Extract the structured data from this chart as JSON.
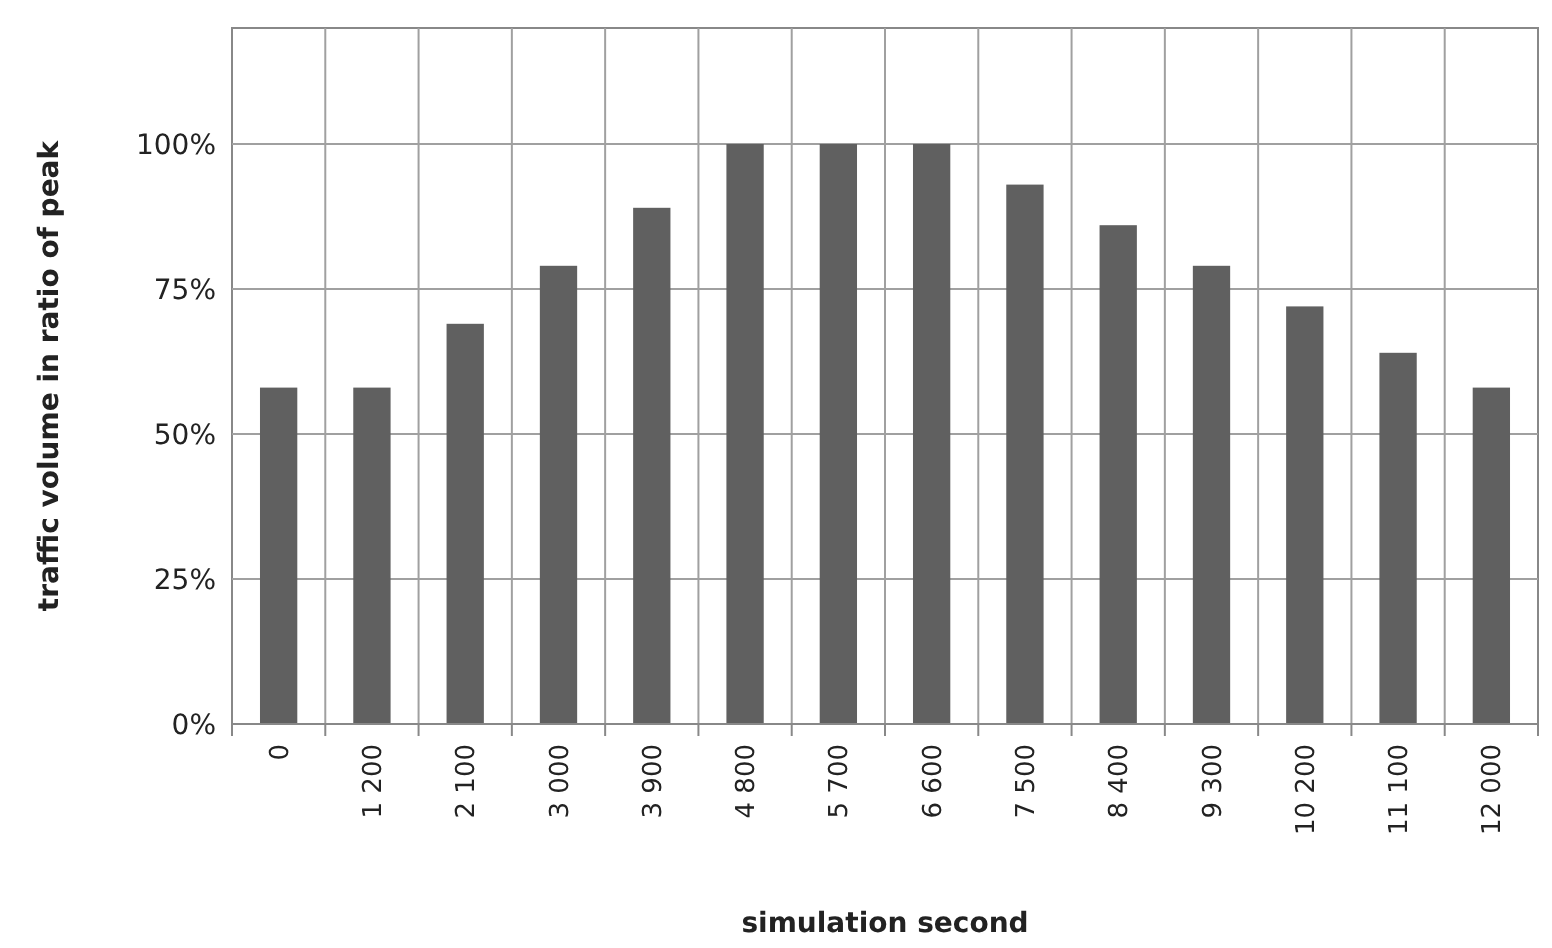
{
  "chart_data": {
    "type": "bar",
    "xlabel": "simulation second",
    "ylabel": "traffic volume in ratio of peak",
    "categories": [
      "0",
      "1 200",
      "2 100",
      "3 000",
      "3 900",
      "4 800",
      "5 700",
      "6 600",
      "7 500",
      "8 400",
      "9 300",
      "10 200",
      "11 100",
      "12 000"
    ],
    "values": [
      58,
      58,
      69,
      79,
      89,
      100,
      100,
      100,
      93,
      86,
      79,
      72,
      64,
      58
    ],
    "color": "#606060",
    "ylim": [
      0,
      120
    ],
    "yticks": [
      {
        "value": 0,
        "label": "0%"
      },
      {
        "value": 25,
        "label": "25%"
      },
      {
        "value": 50,
        "label": "50%"
      },
      {
        "value": 75,
        "label": "75%"
      },
      {
        "value": 100,
        "label": "100%"
      }
    ],
    "grid": true
  }
}
